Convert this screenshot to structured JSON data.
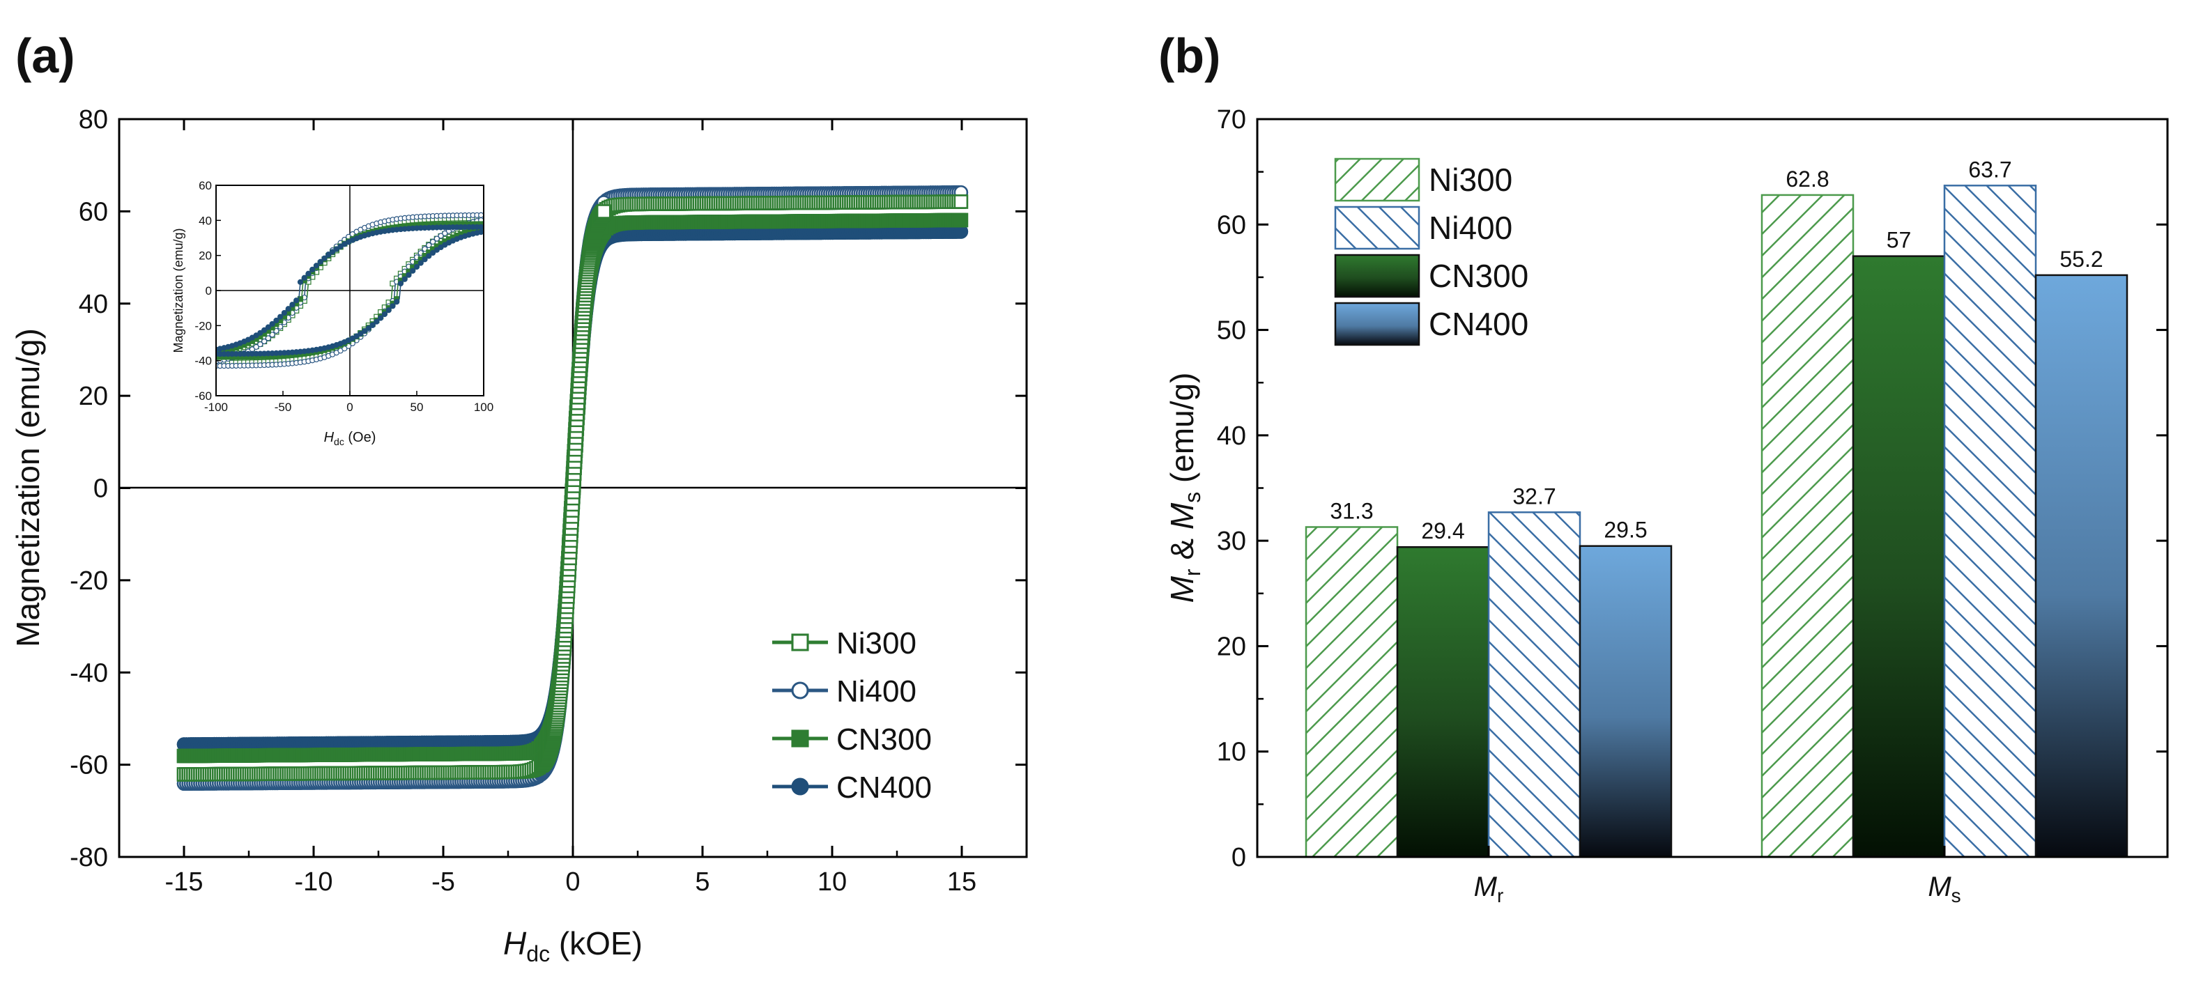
{
  "chart_data": [
    {
      "panel_label": "(a)",
      "type": "line",
      "title": "",
      "xlabel": {
        "italic": "H",
        "sub": "dc",
        "unit": " (kOE)"
      },
      "ylabel": "Magnetization (emu/g)",
      "xlim": [
        -17.5,
        17.5
      ],
      "ylim": [
        -80,
        80
      ],
      "xticks": [
        -15,
        -10,
        -5,
        0,
        5,
        10,
        15
      ],
      "yticks": [
        -80,
        -60,
        -40,
        -20,
        0,
        20,
        40,
        60,
        80
      ],
      "legend_position": "bottom-right",
      "series": [
        {
          "name": "Ni300",
          "color": "#2e7d32",
          "marker": "open-square",
          "ms": 61.5,
          "slope": 1.8,
          "hc": 0.02
        },
        {
          "name": "Ni400",
          "color": "#2b5783",
          "marker": "open-circle",
          "ms": 63.5,
          "slope": 1.8,
          "hc": 0.025
        },
        {
          "name": "CN300",
          "color": "#2e7d32",
          "marker": "filled-square",
          "ms": 57.5,
          "slope": 1.8,
          "hc": 0.03
        },
        {
          "name": "CN400",
          "color": "#1f4e79",
          "marker": "filled-circle",
          "ms": 55.0,
          "slope": 1.8,
          "hc": 0.035
        }
      ],
      "inset": {
        "xlabel": {
          "italic": "H",
          "sub": "dc",
          "unit": " (Oe)"
        },
        "ylabel": "Magnetization (emu/g)",
        "xlim": [
          -100,
          100
        ],
        "ylim": [
          -60,
          60
        ],
        "xticks": [
          -100,
          -50,
          0,
          50,
          100
        ],
        "yticks": [
          -60,
          -40,
          -20,
          0,
          20,
          40,
          60
        ],
        "series": [
          {
            "name": "Ni300",
            "color": "#2e7d32",
            "marker": "open-square",
            "ms": 44,
            "hc": 32,
            "w": 18
          },
          {
            "name": "Ni400",
            "color": "#2b5783",
            "marker": "open-circle",
            "ms": 46,
            "hc": 34,
            "w": 18
          },
          {
            "name": "CN300",
            "color": "#2e7d32",
            "marker": "filled-square",
            "ms": 40,
            "hc": 36,
            "w": 18
          },
          {
            "name": "CN400",
            "color": "#1f4e79",
            "marker": "filled-circle",
            "ms": 38,
            "hc": 38,
            "w": 18
          }
        ]
      }
    },
    {
      "panel_label": "(b)",
      "type": "bar",
      "title": "",
      "ylabel_parts": [
        "M",
        "r",
        " & ",
        "M",
        "s",
        " (emu/g)"
      ],
      "ylim": [
        0,
        70
      ],
      "yticks": [
        0,
        10,
        20,
        30,
        40,
        50,
        60,
        70
      ],
      "categories": [
        "Mr",
        "Ms"
      ],
      "category_labels": [
        {
          "italic": "M",
          "sub": "r"
        },
        {
          "italic": "M",
          "sub": "s"
        }
      ],
      "legend_position": "top-left",
      "series": [
        {
          "name": "Ni300",
          "style": "hatch-green",
          "values": [
            31.3,
            62.8
          ],
          "labels": [
            "31.3",
            "62.8"
          ]
        },
        {
          "name": "CN300",
          "style": "grad-green",
          "values": [
            29.4,
            57.0
          ],
          "labels": [
            "29.4",
            "57"
          ]
        },
        {
          "name": "Ni400",
          "style": "hatch-blue",
          "values": [
            32.7,
            63.7
          ],
          "labels": [
            "32.7",
            "63.7"
          ]
        },
        {
          "name": "CN400",
          "style": "grad-blue",
          "values": [
            29.5,
            55.2
          ],
          "labels": [
            "29.5",
            "55.2"
          ]
        }
      ],
      "legend_order": [
        "Ni300",
        "Ni400",
        "CN300",
        "CN400"
      ]
    }
  ]
}
